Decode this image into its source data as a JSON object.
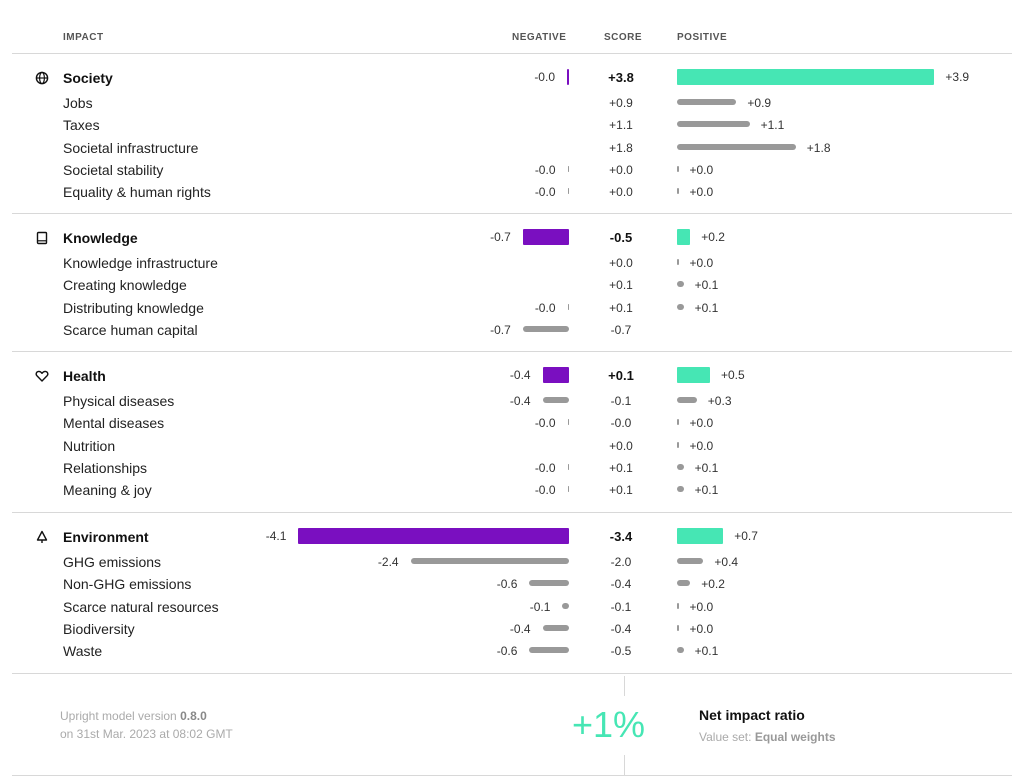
{
  "headers": {
    "impact": "IMPACT",
    "negative": "NEGATIVE",
    "score": "SCORE",
    "positive": "POSITIVE"
  },
  "categories": [
    {
      "name": "Society",
      "icon": "globe-icon",
      "negative": "-0.0",
      "score": "+3.8",
      "positive": "+3.9",
      "items": [
        {
          "name": "Jobs",
          "negative": "",
          "score": "+0.9",
          "positive": "+0.9"
        },
        {
          "name": "Taxes",
          "negative": "",
          "score": "+1.1",
          "positive": "+1.1"
        },
        {
          "name": "Societal infrastructure",
          "negative": "",
          "score": "+1.8",
          "positive": "+1.8"
        },
        {
          "name": "Societal stability",
          "negative": "-0.0",
          "score": "+0.0",
          "positive": "+0.0"
        },
        {
          "name": "Equality & human rights",
          "negative": "-0.0",
          "score": "+0.0",
          "positive": "+0.0"
        }
      ]
    },
    {
      "name": "Knowledge",
      "icon": "book-icon",
      "negative": "-0.7",
      "score": "-0.5",
      "positive": "+0.2",
      "items": [
        {
          "name": "Knowledge infrastructure",
          "negative": "",
          "score": "+0.0",
          "positive": "+0.0"
        },
        {
          "name": "Creating knowledge",
          "negative": "",
          "score": "+0.1",
          "positive": "+0.1"
        },
        {
          "name": "Distributing knowledge",
          "negative": "-0.0",
          "score": "+0.1",
          "positive": "+0.1"
        },
        {
          "name": "Scarce human capital",
          "negative": "-0.7",
          "score": "-0.7",
          "positive": ""
        }
      ]
    },
    {
      "name": "Health",
      "icon": "heart-icon",
      "negative": "-0.4",
      "score": "+0.1",
      "positive": "+0.5",
      "items": [
        {
          "name": "Physical diseases",
          "negative": "-0.4",
          "score": "-0.1",
          "positive": "+0.3"
        },
        {
          "name": "Mental diseases",
          "negative": "-0.0",
          "score": "-0.0",
          "positive": "+0.0"
        },
        {
          "name": "Nutrition",
          "negative": "",
          "score": "+0.0",
          "positive": "+0.0"
        },
        {
          "name": "Relationships",
          "negative": "-0.0",
          "score": "+0.1",
          "positive": "+0.1"
        },
        {
          "name": "Meaning & joy",
          "negative": "-0.0",
          "score": "+0.1",
          "positive": "+0.1"
        }
      ]
    },
    {
      "name": "Environment",
      "icon": "tree-icon",
      "negative": "-4.1",
      "score": "-3.4",
      "positive": "+0.7",
      "items": [
        {
          "name": "GHG emissions",
          "negative": "-2.4",
          "score": "-2.0",
          "positive": "+0.4"
        },
        {
          "name": "Non-GHG emissions",
          "negative": "-0.6",
          "score": "-0.4",
          "positive": "+0.2"
        },
        {
          "name": "Scarce natural resources",
          "negative": "-0.1",
          "score": "-0.1",
          "positive": "+0.0"
        },
        {
          "name": "Biodiversity",
          "negative": "-0.4",
          "score": "-0.4",
          "positive": "+0.0"
        },
        {
          "name": "Waste",
          "negative": "-0.6",
          "score": "-0.5",
          "positive": "+0.1"
        }
      ]
    }
  ],
  "footer": {
    "model_prefix": "Upright model version ",
    "model_version": "0.8.0",
    "model_date": "on 31st Mar. 2023 at 08:02 GMT",
    "net_impact_value": "+1%",
    "net_impact_label": "Net impact ratio",
    "value_set_prefix": "Value set: ",
    "value_set": "Equal weights"
  },
  "colors": {
    "negative_bar": "#7a0fc0",
    "positive_bar": "#46e6b4",
    "sub_bar": "#999999"
  },
  "chart_data": {
    "type": "bar",
    "categories": [
      "Society",
      "Jobs",
      "Taxes",
      "Societal infrastructure",
      "Societal stability",
      "Equality & human rights",
      "Knowledge",
      "Knowledge infrastructure",
      "Creating knowledge",
      "Distributing knowledge",
      "Scarce human capital",
      "Health",
      "Physical diseases",
      "Mental diseases",
      "Nutrition",
      "Relationships",
      "Meaning & joy",
      "Environment",
      "GHG emissions",
      "Non-GHG emissions",
      "Scarce natural resources",
      "Biodiversity",
      "Waste"
    ],
    "series": [
      {
        "name": "NEGATIVE",
        "values": [
          -0.0,
          null,
          null,
          null,
          -0.0,
          -0.0,
          -0.7,
          null,
          null,
          -0.0,
          -0.7,
          -0.4,
          -0.4,
          -0.0,
          null,
          -0.0,
          -0.0,
          -4.1,
          -2.4,
          -0.6,
          -0.1,
          -0.4,
          -0.6
        ]
      },
      {
        "name": "SCORE",
        "values": [
          3.8,
          0.9,
          1.1,
          1.8,
          0.0,
          0.0,
          -0.5,
          0.0,
          0.1,
          0.1,
          -0.7,
          0.1,
          -0.1,
          -0.0,
          0.0,
          0.1,
          0.1,
          -3.4,
          -2.0,
          -0.4,
          -0.1,
          -0.4,
          -0.5
        ]
      },
      {
        "name": "POSITIVE",
        "values": [
          3.9,
          0.9,
          1.1,
          1.8,
          0.0,
          0.0,
          0.2,
          0.0,
          0.1,
          0.1,
          null,
          0.5,
          0.3,
          0.0,
          0.0,
          0.1,
          0.1,
          0.7,
          0.4,
          0.2,
          0.0,
          0.0,
          0.1
        ]
      }
    ]
  }
}
